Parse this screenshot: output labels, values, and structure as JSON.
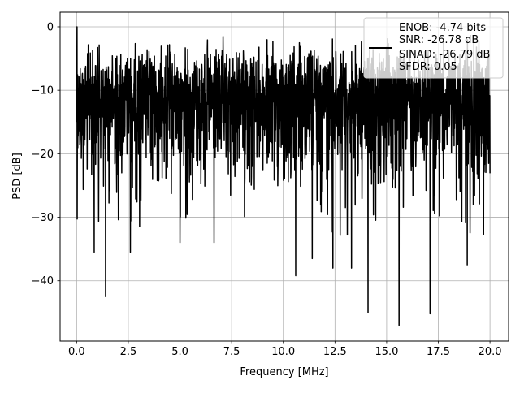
{
  "chart_data": {
    "type": "line",
    "xlabel": "Frequency [MHz]",
    "ylabel": "PSD [dB]",
    "xlim": [
      -0.8,
      20.9
    ],
    "ylim": [
      -49.5,
      2.3
    ],
    "x_ticks": [
      0.0,
      2.5,
      5.0,
      7.5,
      10.0,
      12.5,
      15.0,
      17.5,
      20.0
    ],
    "x_tick_labels": [
      "0.0",
      "2.5",
      "5.0",
      "7.5",
      "10.0",
      "12.5",
      "15.0",
      "17.5",
      "20.0"
    ],
    "y_ticks": [
      0,
      -10,
      -20,
      -30,
      -40
    ],
    "y_tick_labels": [
      "0",
      "−10",
      "−20",
      "−30",
      "−40"
    ],
    "grid": true,
    "legend_position": "top-right",
    "legend_lines": [
      "ENOB: -4.74 bits",
      "SNR: -26.78 dB",
      "SINAD: -26.79 dB",
      "SFDR: 0.05"
    ],
    "line_color": "#000000",
    "series": [
      {
        "x_start": 0.0,
        "x_end": 20.0,
        "baseline_db": -13.5,
        "peak_db": 0.0,
        "deep_nulls": [
          {
            "x": 1.4,
            "y": -42.5
          },
          {
            "x": 0.85,
            "y": -35.5
          },
          {
            "x": 2.6,
            "y": -35.5
          },
          {
            "x": 5.0,
            "y": -34.0
          },
          {
            "x": 6.65,
            "y": -34.0
          },
          {
            "x": 10.6,
            "y": -39.2
          },
          {
            "x": 11.4,
            "y": -36.5
          },
          {
            "x": 12.4,
            "y": -38.0
          },
          {
            "x": 13.3,
            "y": -38.0
          },
          {
            "x": 14.1,
            "y": -45.0
          },
          {
            "x": 15.6,
            "y": -47.0
          },
          {
            "x": 17.1,
            "y": -45.2
          },
          {
            "x": 18.9,
            "y": -37.5
          }
        ]
      }
    ]
  }
}
